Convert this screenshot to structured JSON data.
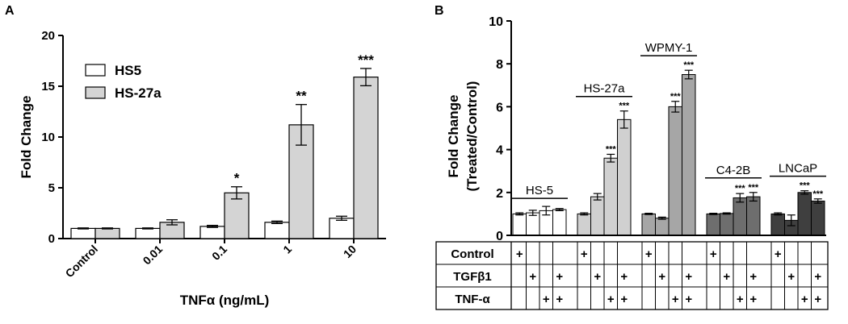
{
  "panel_a": {
    "panel_label": "A",
    "chart_data": {
      "type": "bar",
      "categories": [
        "Control",
        "0.01",
        "0.1",
        "1",
        "10"
      ],
      "xlabel": "TNFα (ng/mL)",
      "ylabel": "Fold  Change",
      "ylim": [
        0,
        20
      ],
      "yticks": [
        "0",
        "5",
        "10",
        "15",
        "20"
      ],
      "grid": false,
      "legend": "top-left",
      "series": [
        {
          "name": "HS5",
          "color": "#ffffff",
          "values": [
            1.0,
            1.0,
            1.2,
            1.6,
            2.0
          ],
          "errors": [
            0.05,
            0.05,
            0.1,
            0.12,
            0.2
          ],
          "sig": [
            "",
            "",
            "",
            "",
            ""
          ]
        },
        {
          "name": "HS-27a",
          "color": "#d4d4d4",
          "values": [
            1.0,
            1.6,
            4.5,
            11.2,
            15.9
          ],
          "errors": [
            0.05,
            0.25,
            0.6,
            2.0,
            0.85
          ],
          "sig": [
            "",
            "",
            "*",
            "**",
            "***"
          ]
        }
      ]
    }
  },
  "panel_b": {
    "panel_label": "B",
    "chart_data": {
      "type": "bar",
      "ylabel_line1": "Fold Change",
      "ylabel_line2": "(Treated/Control)",
      "ylim": [
        0,
        10
      ],
      "yticks": [
        "0",
        "2",
        "4",
        "6",
        "8",
        "10"
      ],
      "grid": false,
      "groups": [
        {
          "name": "HS-5",
          "color": "#ffffff",
          "values": [
            1.0,
            1.05,
            1.15,
            1.2
          ],
          "errors": [
            0.05,
            0.12,
            0.2,
            0.05
          ],
          "sig": [
            "",
            "",
            "",
            ""
          ]
        },
        {
          "name": "HS-27a",
          "color": "#d0d0d0",
          "values": [
            1.0,
            1.8,
            3.6,
            5.4
          ],
          "errors": [
            0.05,
            0.15,
            0.18,
            0.4
          ],
          "sig": [
            "",
            "",
            "***",
            "***"
          ]
        },
        {
          "name": "WPMY-1",
          "color": "#a6a6a6",
          "values": [
            1.0,
            0.8,
            6.0,
            7.5
          ],
          "errors": [
            0.03,
            0.05,
            0.25,
            0.2
          ],
          "sig": [
            "",
            "",
            "***",
            "***"
          ]
        },
        {
          "name": "C4-2B",
          "color": "#6e6e6e",
          "values": [
            1.0,
            1.02,
            1.75,
            1.8
          ],
          "errors": [
            0.03,
            0.03,
            0.2,
            0.2
          ],
          "sig": [
            "",
            "",
            "***",
            "***"
          ]
        },
        {
          "name": "LNCaP",
          "color": "#3f3f3f",
          "values": [
            1.0,
            0.7,
            2.0,
            1.6
          ],
          "errors": [
            0.05,
            0.25,
            0.08,
            0.1
          ],
          "sig": [
            "",
            "",
            "***",
            "***"
          ]
        }
      ],
      "table": {
        "rows": [
          {
            "label": "Control",
            "marks": [
              1,
              0,
              0,
              0
            ]
          },
          {
            "label": "TGFβ1",
            "marks": [
              0,
              1,
              0,
              1
            ]
          },
          {
            "label": "TNF-α",
            "marks": [
              0,
              0,
              1,
              1
            ]
          }
        ],
        "mark": "+"
      }
    }
  }
}
